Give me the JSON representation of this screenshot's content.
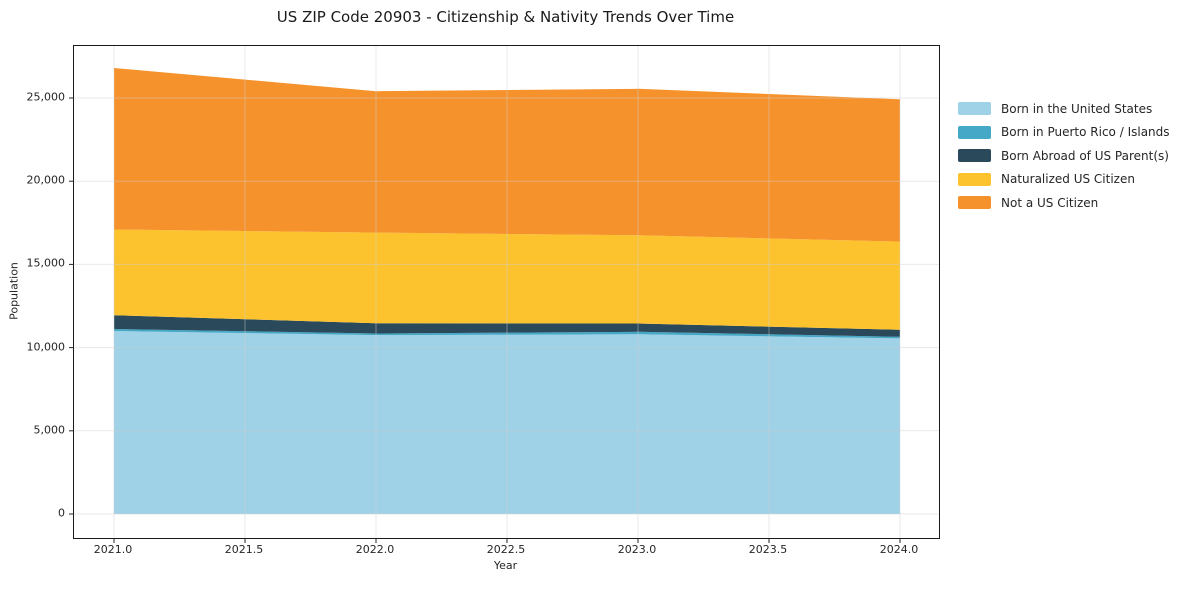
{
  "title": "US ZIP Code 20903 - Citizenship & Nativity Trends Over Time",
  "chart_data": {
    "type": "area",
    "stacked": true,
    "title": "US ZIP Code 20903 - Citizenship & Nativity Trends Over Time",
    "xlabel": "Year",
    "ylabel": "Population",
    "x": [
      2021,
      2022,
      2023,
      2024
    ],
    "xlim": [
      2021,
      2024
    ],
    "ylim": [
      0,
      26800
    ],
    "grid": true,
    "legend_position": "right",
    "x_tick_labels": [
      "2021.0",
      "2021.5",
      "2022.0",
      "2022.5",
      "2023.0",
      "2023.5",
      "2024.0"
    ],
    "y_tick_labels": [
      "0",
      "5,000",
      "10,000",
      "15,000",
      "20,000",
      "25,000"
    ],
    "series": [
      {
        "name": "Born in the United States",
        "color": "#9fd1e7",
        "values": [
          11000,
          10750,
          10800,
          10550
        ]
      },
      {
        "name": "Born in Puerto Rico / Islands",
        "color": "#45a8c6",
        "values": [
          120,
          100,
          150,
          100
        ]
      },
      {
        "name": "Born Abroad of US Parent(s)",
        "color": "#2a4a5c",
        "values": [
          830,
          610,
          500,
          420
        ]
      },
      {
        "name": "Naturalized US Citizen",
        "color": "#fdc32e",
        "values": [
          5150,
          5450,
          5300,
          5300
        ]
      },
      {
        "name": "Not a US Citizen",
        "color": "#f6922b",
        "values": [
          9700,
          8500,
          8800,
          8550
        ]
      }
    ],
    "stacked_totals": [
      26800,
      25410,
      25550,
      24920
    ]
  },
  "colors": {
    "background": "#ffffff",
    "spine": "#1a1a1a",
    "grid": "#e8e8e8",
    "text": "#262626"
  }
}
